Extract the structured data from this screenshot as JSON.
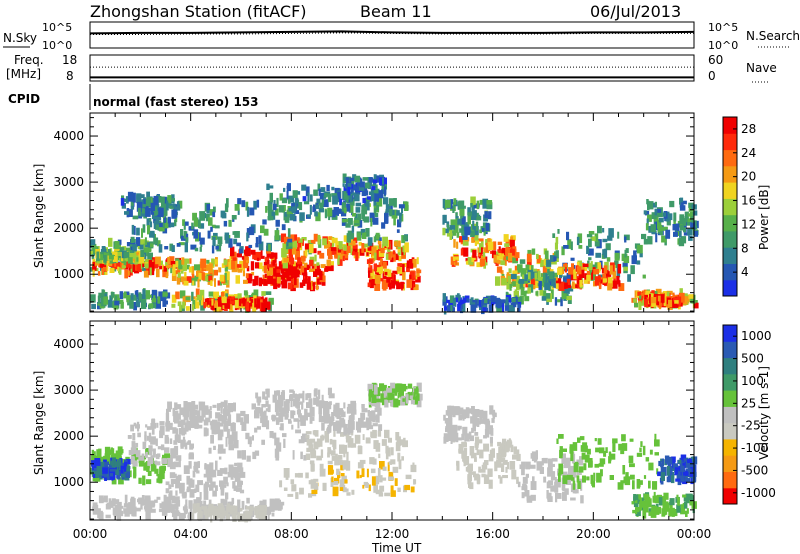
{
  "header": {
    "title": "Zhongshan Station (fitACF)",
    "beam": "Beam 11",
    "date": "06/Jul/2013"
  },
  "top_panels": {
    "nsky_label": "N.Sky",
    "nsearch_label": "N.Search",
    "nsky_ticks": [
      "10^5",
      "10^0"
    ],
    "nsearch_ticks": [
      "10^5",
      "10^0"
    ],
    "freq_label_1": "Freq.",
    "freq_label_2": "[MHz]",
    "freq_ticks": [
      "18",
      "8"
    ],
    "nave_label": "Nave",
    "nave_ticks": [
      "60",
      "0"
    ],
    "cpid_label": "CPID",
    "cpid_text": "normal (fast stereo) 153"
  },
  "colors": {
    "power_scale": [
      "#1b2fe6",
      "#2557b3",
      "#2f7f8f",
      "#3f9a68",
      "#57b04a",
      "#9ccf3a",
      "#f0d420",
      "#f59a14",
      "#ff6a10",
      "#ff2a0a",
      "#f00000"
    ],
    "velocity_scale": [
      "#f00000",
      "#ff6a10",
      "#f59a14",
      "#f5b400",
      "#c9c9c0",
      "#c0c0c0",
      "#66c23a",
      "#3f9a68",
      "#2f7f7f",
      "#2a5ab3",
      "#1b2fe6"
    ]
  },
  "chart_data": [
    {
      "type": "heatmap",
      "title": "",
      "xlabel": "Time UT",
      "ylabel": "Slant Range [km]",
      "x_ticks": [
        "00:00",
        "04:00",
        "08:00",
        "12:00",
        "16:00",
        "20:00",
        "00:00"
      ],
      "y_ticks": [
        "1000",
        "2000",
        "3000",
        "4000"
      ],
      "ylim": [
        180,
        4500
      ],
      "colorbar_label": "Power [dB]",
      "colorbar_ticks": [
        "4",
        "8",
        "12",
        "16",
        "20",
        "24",
        "28"
      ],
      "colorbar_range": [
        0,
        30
      ],
      "blobs": [
        {
          "t0": 0.0,
          "t1": 2.3,
          "r0": 1100,
          "r1": 1700,
          "v": 10
        },
        {
          "t0": 0.0,
          "t1": 3.5,
          "r0": 1000,
          "r1": 1300,
          "v": 24
        },
        {
          "t0": 0.2,
          "t1": 2.0,
          "r0": 1300,
          "r1": 1450,
          "v": 14
        },
        {
          "t0": 0.0,
          "t1": 3.0,
          "r0": 280,
          "r1": 600,
          "v": 8
        },
        {
          "t0": 3.2,
          "t1": 7.2,
          "r0": 250,
          "r1": 600,
          "v": 16
        },
        {
          "t0": 4.5,
          "t1": 7.0,
          "r0": 280,
          "r1": 450,
          "v": 26
        },
        {
          "t0": 1.5,
          "t1": 4.5,
          "r0": 1500,
          "r1": 2300,
          "v": 8
        },
        {
          "t0": 1.2,
          "t1": 3.5,
          "r0": 2300,
          "r1": 2700,
          "v": 7
        },
        {
          "t0": 3.0,
          "t1": 5.5,
          "r0": 800,
          "r1": 1300,
          "v": 18
        },
        {
          "t0": 5.5,
          "t1": 8.0,
          "r0": 800,
          "r1": 1500,
          "v": 26
        },
        {
          "t0": 7.0,
          "t1": 9.5,
          "r0": 700,
          "r1": 1200,
          "v": 29
        },
        {
          "t0": 7.5,
          "t1": 10.5,
          "r0": 1200,
          "r1": 1800,
          "v": 20
        },
        {
          "t0": 4.5,
          "t1": 8.0,
          "r0": 1500,
          "r1": 2600,
          "v": 8
        },
        {
          "t0": 7.0,
          "t1": 10.0,
          "r0": 2200,
          "r1": 2900,
          "v": 7
        },
        {
          "t0": 9.5,
          "t1": 12.5,
          "r0": 1300,
          "r1": 1700,
          "v": 22
        },
        {
          "t0": 11.0,
          "t1": 13.0,
          "r0": 700,
          "r1": 1300,
          "v": 26
        },
        {
          "t0": 10.0,
          "t1": 12.5,
          "r0": 1700,
          "r1": 2600,
          "v": 9
        },
        {
          "t0": 10.0,
          "t1": 11.7,
          "r0": 2600,
          "r1": 3100,
          "v": 6
        },
        {
          "t0": 14.3,
          "t1": 16.8,
          "r0": 1200,
          "r1": 1800,
          "v": 22
        },
        {
          "t0": 14.0,
          "t1": 15.8,
          "r0": 1800,
          "r1": 2600,
          "v": 9
        },
        {
          "t0": 16.0,
          "t1": 18.5,
          "r0": 700,
          "r1": 1500,
          "v": 18
        },
        {
          "t0": 16.5,
          "t1": 19.0,
          "r0": 400,
          "r1": 1000,
          "v": 10
        },
        {
          "t0": 18.0,
          "t1": 22.0,
          "r0": 900,
          "r1": 2000,
          "v": 9
        },
        {
          "t0": 18.5,
          "t1": 21.0,
          "r0": 700,
          "r1": 1200,
          "v": 24
        },
        {
          "t0": 21.5,
          "t1": 24.0,
          "r0": 300,
          "r1": 600,
          "v": 20
        },
        {
          "t0": 22.0,
          "t1": 23.5,
          "r0": 350,
          "r1": 500,
          "v": 27
        },
        {
          "t0": 22.0,
          "t1": 24.0,
          "r0": 1700,
          "r1": 2600,
          "v": 8
        },
        {
          "t0": 14.0,
          "t1": 17.0,
          "r0": 220,
          "r1": 500,
          "v": 5
        }
      ]
    },
    {
      "type": "heatmap",
      "title": "",
      "xlabel": "Time UT",
      "ylabel": "Slant Range [km]",
      "x_ticks": [
        "00:00",
        "04:00",
        "08:00",
        "12:00",
        "16:00",
        "20:00",
        "00:00"
      ],
      "y_ticks": [
        "1000",
        "2000",
        "3000",
        "4000"
      ],
      "ylim": [
        180,
        4500
      ],
      "colorbar_label": "Velocity [m s-1]",
      "colorbar_ticks": [
        "1000",
        "500",
        "100",
        "25",
        "-25",
        "-100",
        "-500",
        "-1000"
      ],
      "colorbar_range": [
        -1200,
        1200
      ],
      "blobs": [
        {
          "t0": 0.0,
          "t1": 3.0,
          "r0": 1000,
          "r1": 1700,
          "v": 180
        },
        {
          "t0": 0.0,
          "t1": 1.5,
          "r0": 1100,
          "r1": 1450,
          "v": 900
        },
        {
          "t0": 1.5,
          "t1": 4.0,
          "r0": 1400,
          "r1": 2300,
          "v": 80
        },
        {
          "t0": 0.0,
          "t1": 3.5,
          "r0": 250,
          "r1": 650,
          "v": 60
        },
        {
          "t0": 3.0,
          "t1": 7.5,
          "r0": 250,
          "r1": 600,
          "v": 30
        },
        {
          "t0": 4.0,
          "t1": 7.0,
          "r0": 220,
          "r1": 450,
          "v": -150
        },
        {
          "t0": 3.0,
          "t1": 6.0,
          "r0": 700,
          "r1": 1400,
          "v": 70
        },
        {
          "t0": 4.5,
          "t1": 8.5,
          "r0": 1500,
          "r1": 2800,
          "v": 0
        },
        {
          "t0": 6.5,
          "t1": 9.5,
          "r0": 2300,
          "r1": 3000,
          "v": 10
        },
        {
          "t0": 3.0,
          "t1": 5.5,
          "r0": 2100,
          "r1": 2700,
          "v": 80
        },
        {
          "t0": 7.5,
          "t1": 13.0,
          "r0": 700,
          "r1": 1400,
          "v": -300
        },
        {
          "t0": 8.5,
          "t1": 12.5,
          "r0": 1400,
          "r1": 2100,
          "v": -200
        },
        {
          "t0": 9.0,
          "t1": 11.5,
          "r0": 2100,
          "r1": 2700,
          "v": -80
        },
        {
          "t0": 14.3,
          "t1": 17.0,
          "r0": 900,
          "r1": 1900,
          "v": -250
        },
        {
          "t0": 14.0,
          "t1": 16.0,
          "r0": 1900,
          "r1": 2600,
          "v": -60
        },
        {
          "t0": 17.0,
          "t1": 19.5,
          "r0": 600,
          "r1": 1600,
          "v": 50
        },
        {
          "t0": 18.5,
          "t1": 22.5,
          "r0": 900,
          "r1": 2000,
          "v": 200
        },
        {
          "t0": 21.5,
          "t1": 24.0,
          "r0": 300,
          "r1": 700,
          "v": 300
        },
        {
          "t0": 22.5,
          "t1": 24.0,
          "r0": 1000,
          "r1": 1500,
          "v": 900
        },
        {
          "t0": 11.0,
          "t1": 13.0,
          "r0": 2700,
          "r1": 3100,
          "v": 120
        }
      ]
    },
    {
      "type": "line",
      "title": "",
      "xlabel": "",
      "ylabel": "N.Sky",
      "series": [
        {
          "name": "N.Sky",
          "x": [
            0,
            2,
            4,
            6,
            8,
            10,
            12,
            14,
            16,
            18,
            20,
            22,
            24
          ],
          "values": [
            2.8,
            2.9,
            2.9,
            3.0,
            3.1,
            3.2,
            3.0,
            2.9,
            2.9,
            2.9,
            3.0,
            3.0,
            3.1
          ]
        },
        {
          "name": "N.Search",
          "x": [
            0,
            2,
            4,
            6,
            8,
            10,
            12,
            14,
            16,
            18,
            20,
            22,
            24
          ],
          "values": [
            2.6,
            2.6,
            2.7,
            2.7,
            2.8,
            2.9,
            2.8,
            2.7,
            2.7,
            2.7,
            2.8,
            2.8,
            2.8
          ]
        }
      ],
      "ylim": [
        0,
        5
      ]
    },
    {
      "type": "line",
      "title": "",
      "xlabel": "",
      "ylabel": "Freq. [MHz]",
      "series": [
        {
          "name": "Freq.",
          "x": [
            0,
            4,
            8,
            12,
            16,
            20,
            24
          ],
          "values": [
            9.4,
            9.4,
            9.4,
            9.4,
            9.4,
            9.4,
            9.4
          ]
        },
        {
          "name": "Nave",
          "x": [
            0,
            4,
            8,
            12,
            16,
            20,
            24
          ],
          "values": [
            32,
            32,
            32,
            32,
            32,
            32,
            32
          ]
        }
      ],
      "ylim": [
        8,
        18
      ]
    }
  ]
}
